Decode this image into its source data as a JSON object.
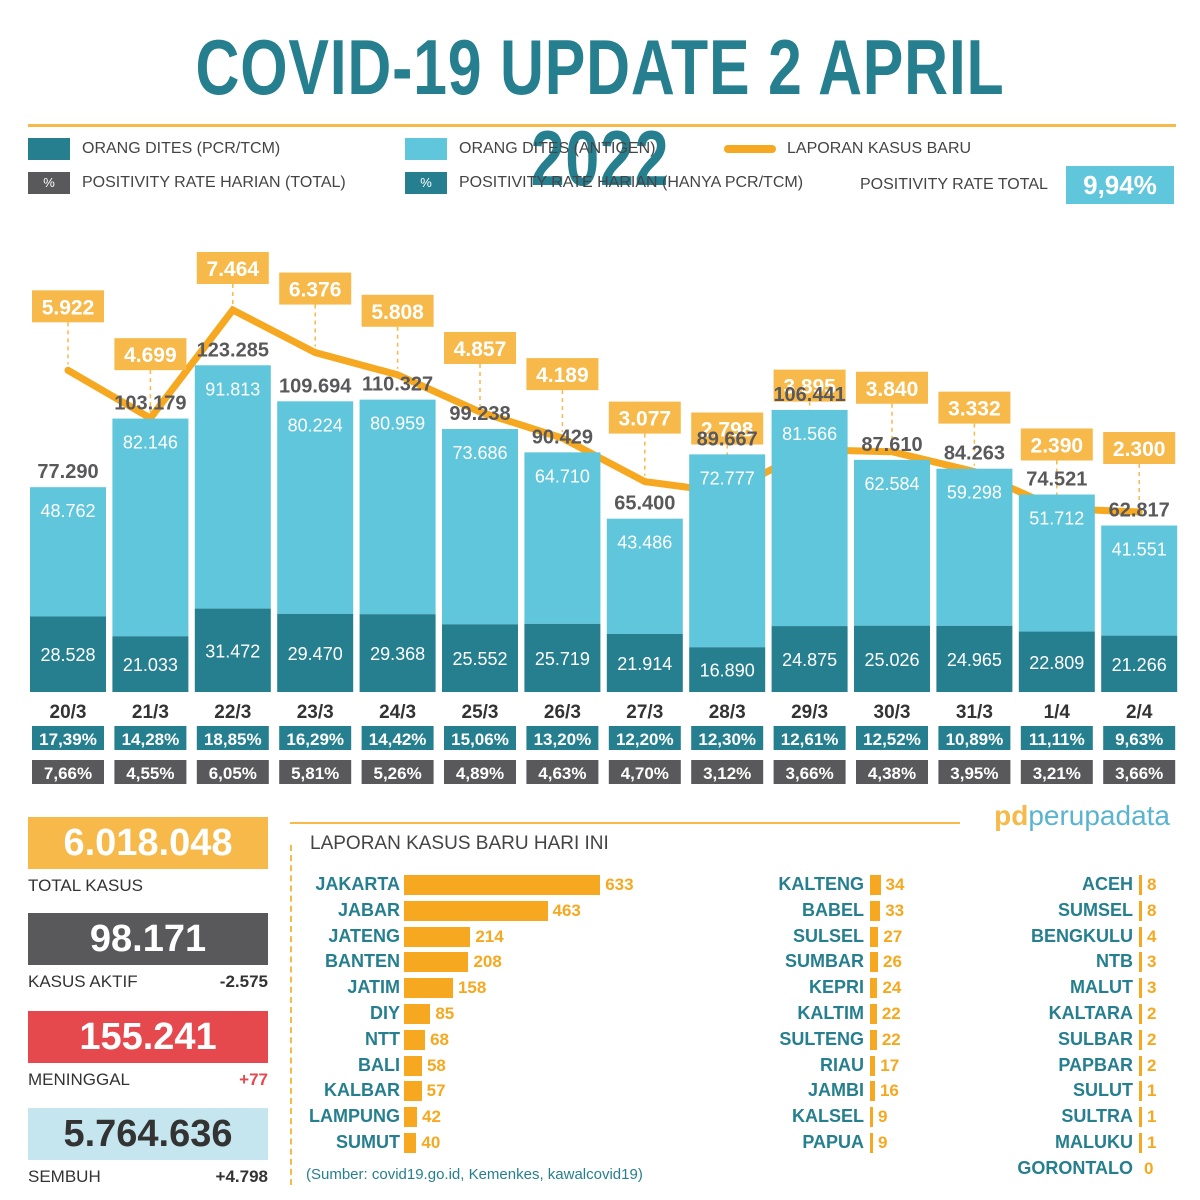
{
  "title": "COVID-19 UPDATE 2 APRIL 2022",
  "legend": {
    "pcr": "ORANG DITES (PCR/TCM)",
    "antigen": "ORANG DITES (ANTIGEN)",
    "new_cases": "LAPORAN KASUS BARU",
    "pct_symbol": "%",
    "pr_total_label": "POSITIVITY RATE HARIAN (TOTAL)",
    "pr_pcr_label": "POSITIVITY RATE HARIAN (HANYA PCR/TCM)",
    "pr_overall_label": "POSITIVITY RATE TOTAL",
    "pr_overall_value": "9,94%"
  },
  "colors": {
    "teal_dark": "#267f8f",
    "teal_light": "#5fc6db",
    "orange": "#f6b94a",
    "grey": "#59595b",
    "red": "#e5484d",
    "light_blue": "#c6e6ef"
  },
  "chart_data": {
    "type": "bar",
    "categories": [
      "20/3",
      "21/3",
      "22/3",
      "23/3",
      "24/3",
      "25/3",
      "26/3",
      "27/3",
      "28/3",
      "29/3",
      "30/3",
      "31/3",
      "1/4",
      "2/4"
    ],
    "series": [
      {
        "name": "ORANG DITES (PCR/TCM)",
        "values": [
          28528,
          21033,
          31472,
          29470,
          29368,
          25552,
          25719,
          21914,
          16890,
          24875,
          25026,
          24965,
          22809,
          21266
        ],
        "labels": [
          "28.528",
          "21.033",
          "31.472",
          "29.470",
          "29.368",
          "25.552",
          "25.719",
          "21.914",
          "16.890",
          "24.875",
          "25.026",
          "24.965",
          "22.809",
          "21.266"
        ]
      },
      {
        "name": "ORANG DITES (ANTIGEN)",
        "values": [
          48762,
          82146,
          91813,
          80224,
          80959,
          73686,
          64710,
          43486,
          72777,
          81566,
          62584,
          59298,
          51712,
          41551
        ],
        "labels": [
          "48.762",
          "82.146",
          "91.813",
          "80.224",
          "80.959",
          "73.686",
          "64.710",
          "43.486",
          "72.777",
          "81.566",
          "62.584",
          "59.298",
          "51.712",
          "41.551"
        ]
      },
      {
        "name": "LAPORAN KASUS BARU",
        "type": "line",
        "values": [
          5922,
          4699,
          7464,
          6376,
          5808,
          4857,
          4189,
          3077,
          2798,
          3895,
          3840,
          3332,
          2390,
          2300
        ],
        "labels": [
          "5.922",
          "4.699",
          "7.464",
          "6.376",
          "5.808",
          "4.857",
          "4.189",
          "3.077",
          "2.798",
          "3.895",
          "3.840",
          "3.332",
          "2.390",
          "2.300"
        ]
      }
    ],
    "totals": [
      "77.290",
      "103.179",
      "123.285",
      "109.694",
      "110.327",
      "99.238",
      "90.429",
      "65.400",
      "89.667",
      "106.441",
      "87.610",
      "84.263",
      "74.521",
      "62.817"
    ],
    "total_values": [
      77290,
      103179,
      123285,
      109694,
      110327,
      99238,
      90429,
      65400,
      89667,
      106441,
      87610,
      84263,
      74521,
      62817
    ],
    "pr_pcr": [
      "17,39%",
      "14,28%",
      "18,85%",
      "16,29%",
      "14,42%",
      "15,06%",
      "13,20%",
      "12,20%",
      "12,30%",
      "12,61%",
      "12,52%",
      "10,89%",
      "11,11%",
      "9,63%"
    ],
    "pr_total": [
      "7,66%",
      "4,55%",
      "6,05%",
      "5,81%",
      "5,26%",
      "4,89%",
      "4,63%",
      "4,70%",
      "3,12%",
      "3,66%",
      "4,38%",
      "3,95%",
      "3,21%",
      "3,66%"
    ]
  },
  "stats": {
    "total": {
      "value": "6.018.048",
      "label": "TOTAL KASUS"
    },
    "active": {
      "value": "98.171",
      "label": "KASUS AKTIF",
      "delta": "-2.575"
    },
    "deaths": {
      "value": "155.241",
      "label": "MENINGGAL",
      "delta": "+77"
    },
    "recovered": {
      "value": "5.764.636",
      "label": "SEMBUH",
      "delta": "+4.798"
    }
  },
  "provinces": {
    "title": "LAPORAN KASUS BARU HARI INI",
    "source": "(Sumber: covid19.go.id, Kemenkes, kawalcovid19)",
    "col1": [
      {
        "name": "JAKARTA",
        "value": 633
      },
      {
        "name": "JABAR",
        "value": 463
      },
      {
        "name": "JATENG",
        "value": 214
      },
      {
        "name": "BANTEN",
        "value": 208
      },
      {
        "name": "JATIM",
        "value": 158
      },
      {
        "name": "DIY",
        "value": 85
      },
      {
        "name": "NTT",
        "value": 68
      },
      {
        "name": "BALI",
        "value": 58
      },
      {
        "name": "KALBAR",
        "value": 57
      },
      {
        "name": "LAMPUNG",
        "value": 42
      },
      {
        "name": "SUMUT",
        "value": 40
      }
    ],
    "col2": [
      {
        "name": "KALTENG",
        "value": 34
      },
      {
        "name": "BABEL",
        "value": 33
      },
      {
        "name": "SULSEL",
        "value": 27
      },
      {
        "name": "SUMBAR",
        "value": 26
      },
      {
        "name": "KEPRI",
        "value": 24
      },
      {
        "name": "KALTIM",
        "value": 22
      },
      {
        "name": "SULTENG",
        "value": 22
      },
      {
        "name": "RIAU",
        "value": 17
      },
      {
        "name": "JAMBI",
        "value": 16
      },
      {
        "name": "KALSEL",
        "value": 9
      },
      {
        "name": "PAPUA",
        "value": 9
      }
    ],
    "col3": [
      {
        "name": "ACEH",
        "value": 8
      },
      {
        "name": "SUMSEL",
        "value": 8
      },
      {
        "name": "BENGKULU",
        "value": 4
      },
      {
        "name": "NTB",
        "value": 3
      },
      {
        "name": "MALUT",
        "value": 3
      },
      {
        "name": "KALTARA",
        "value": 2
      },
      {
        "name": "SULBAR",
        "value": 2
      },
      {
        "name": "PAPBAR",
        "value": 2
      },
      {
        "name": "SULUT",
        "value": 1
      },
      {
        "name": "SULTRA",
        "value": 1
      },
      {
        "name": "MALUKU",
        "value": 1
      },
      {
        "name": "GORONTALO",
        "value": 0
      }
    ]
  },
  "logo": {
    "mark": "pd",
    "text": "perupadata"
  }
}
